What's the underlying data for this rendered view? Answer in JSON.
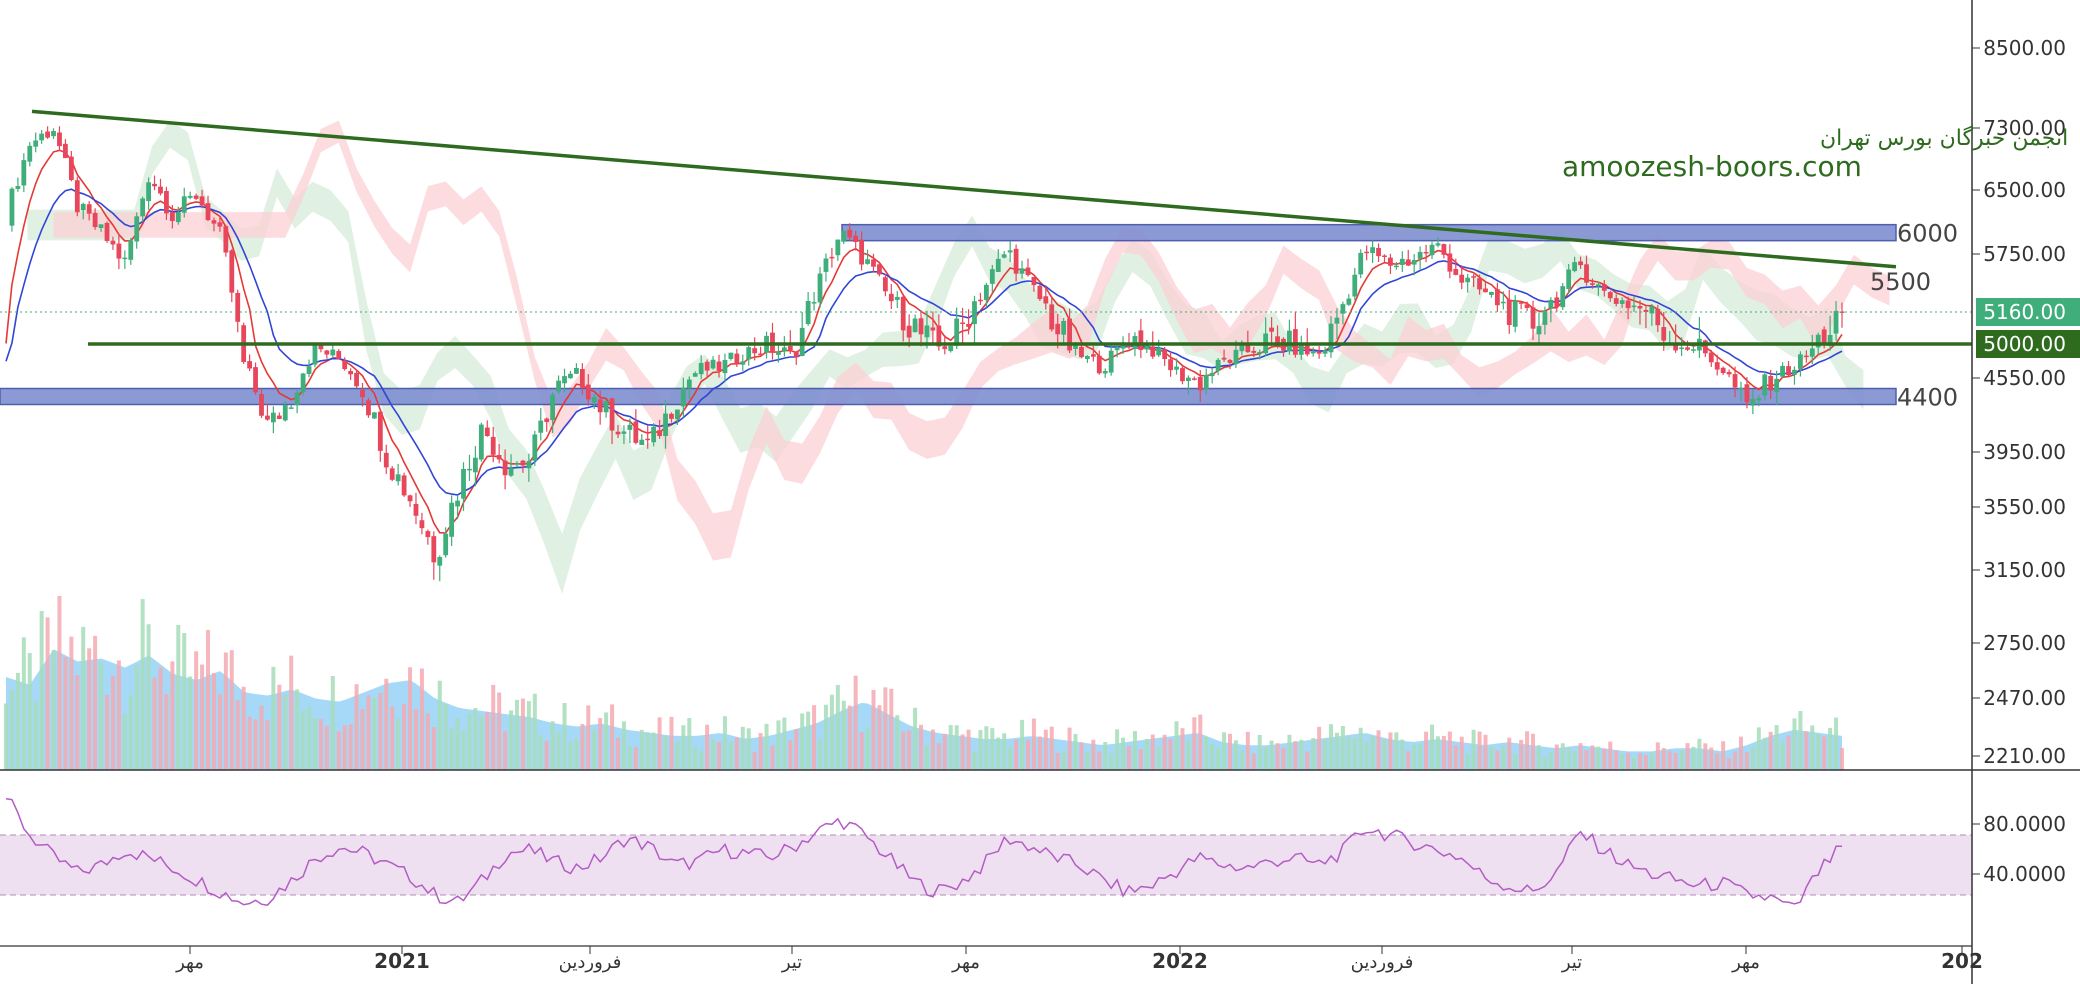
{
  "watermark": {
    "title_fa": "انجمن خبرگان بورس تهران",
    "site": "amoozesh-boors.com"
  },
  "colors": {
    "up_candle": "#3fae7a",
    "down_candle": "#e8465a",
    "ema_fast": "#e53935",
    "ema_slow": "#3146d6",
    "trendline": "#2e6b1f",
    "support_line": "#2e6b1f",
    "zone_fill": "#7f8fd1",
    "zone_stroke": "#3b4ea8",
    "cloud_bull": "#d6ecd9",
    "cloud_bear": "#fbd0d4",
    "volume_ma": "#8fd0f5",
    "rsi_line": "#b35cc4",
    "rsi_band": "#efe0f1",
    "badge_last": "#3fae7a",
    "badge_support": "#2e6b1f"
  },
  "chart_data": [
    {
      "type": "candlestick",
      "title": "",
      "price_axis_ticks": [
        8500,
        7300,
        6500,
        5750,
        5160,
        5000,
        4550,
        3950,
        3550,
        3150,
        2750,
        2470,
        2210
      ],
      "price_axis_labels": [
        "8500.00",
        "7300.00",
        "6500.00",
        "5750.00",
        "5160.00",
        "5000.00",
        "4550.00",
        "3950.00",
        "3550.00",
        "3150.00",
        "2750.00",
        "2470.00",
        "2210.00"
      ],
      "time_axis_labels": [
        "مهر",
        "2021",
        "فروردین",
        "تیر",
        "مهر",
        "2022",
        "فروردین",
        "تیر",
        "مهر",
        "202"
      ],
      "last_price": "5160.00",
      "support_price": "5000.00",
      "horizontal_zones": [
        {
          "label": "6000",
          "value": 6000
        },
        {
          "label": "4400",
          "value": 4400
        }
      ],
      "support_line": {
        "value": 5000
      },
      "trendline": {
        "label": "5500",
        "start_price": 7550,
        "end_price": 5620
      },
      "close_path": [
        {
          "t": 0,
          "c": 6200
        },
        {
          "t": 0.03,
          "c": 7000
        },
        {
          "t": 0.06,
          "c": 7200
        },
        {
          "t": 0.1,
          "c": 6300
        },
        {
          "t": 0.14,
          "c": 5900
        },
        {
          "t": 0.18,
          "c": 5600
        },
        {
          "t": 0.22,
          "c": 6700
        },
        {
          "t": 0.26,
          "c": 6100
        },
        {
          "t": 0.3,
          "c": 6400
        },
        {
          "t": 0.34,
          "c": 5950
        },
        {
          "t": 0.38,
          "c": 4700
        },
        {
          "t": 0.42,
          "c": 4150
        },
        {
          "t": 0.46,
          "c": 4450
        },
        {
          "t": 0.5,
          "c": 4900
        },
        {
          "t": 0.54,
          "c": 4800
        },
        {
          "t": 0.58,
          "c": 4500
        },
        {
          "t": 0.62,
          "c": 3900
        },
        {
          "t": 0.66,
          "c": 3600
        },
        {
          "t": 0.7,
          "c": 3250
        },
        {
          "t": 0.74,
          "c": 3700
        },
        {
          "t": 0.78,
          "c": 4100
        },
        {
          "t": 0.82,
          "c": 3850
        },
        {
          "t": 0.86,
          "c": 3900
        },
        {
          "t": 0.9,
          "c": 4300
        }
      ],
      "price_series": [
        6200,
        7100,
        7300,
        6300,
        6000,
        5650,
        6700,
        6200,
        6450,
        5950,
        4700,
        4150,
        4400,
        4950,
        4800,
        4450,
        3900,
        3600,
        3250,
        3700,
        4150,
        3850,
        3900,
        4450,
        4600,
        4300,
        4100,
        4000,
        4350,
        4650,
        4700,
        4900,
        4950,
        4850,
        5400,
        6000,
        5700,
        5300,
        5100,
        4950,
        5050,
        5400,
        5800,
        5400,
        5100,
        4850,
        4700,
        5050,
        4950,
        4650,
        4500,
        4750,
        4900,
        5000,
        4950,
        4850,
        5200,
        5800,
        5650,
        5700,
        5850,
        5500,
        5350,
        5200,
        5100,
        5300,
        5650,
        5350,
        5250,
        5150,
        5000,
        4950,
        4650,
        4300,
        4550,
        4700,
        5000,
        5160
      ],
      "volume_series": [
        60,
        55,
        78,
        70,
        72,
        66,
        74,
        62,
        58,
        64,
        50,
        48,
        52,
        46,
        44,
        50,
        56,
        58,
        46,
        40,
        38,
        36,
        34,
        30,
        28,
        30,
        26,
        24,
        22,
        22,
        24,
        20,
        22,
        26,
        30,
        38,
        44,
        36,
        28,
        24,
        22,
        20,
        20,
        22,
        20,
        18,
        16,
        18,
        20,
        22,
        24,
        18,
        16,
        16,
        18,
        20,
        22,
        24,
        20,
        18,
        20,
        18,
        16,
        18,
        16,
        14,
        16,
        14,
        12,
        12,
        14,
        14,
        12,
        16,
        22,
        26,
        24,
        22
      ]
    },
    {
      "type": "line",
      "title": "",
      "name": "RSI",
      "axis_labels": [
        "80.0000",
        "40.0000"
      ],
      "band": [
        30,
        70
      ],
      "values": [
        95,
        70,
        55,
        45,
        50,
        60,
        55,
        48,
        40,
        32,
        25,
        28,
        40,
        55,
        62,
        58,
        50,
        42,
        30,
        25,
        40,
        58,
        60,
        52,
        48,
        55,
        68,
        62,
        50,
        52,
        60,
        58,
        55,
        62,
        72,
        80,
        70,
        55,
        40,
        32,
        38,
        50,
        68,
        62,
        55,
        50,
        40,
        32,
        36,
        45,
        55,
        50,
        48,
        52,
        55,
        50,
        58,
        75,
        70,
        65,
        60,
        55,
        42,
        36,
        32,
        44,
        72,
        60,
        50,
        44,
        40,
        36,
        38,
        30,
        28,
        20,
        45,
        62
      ]
    }
  ]
}
